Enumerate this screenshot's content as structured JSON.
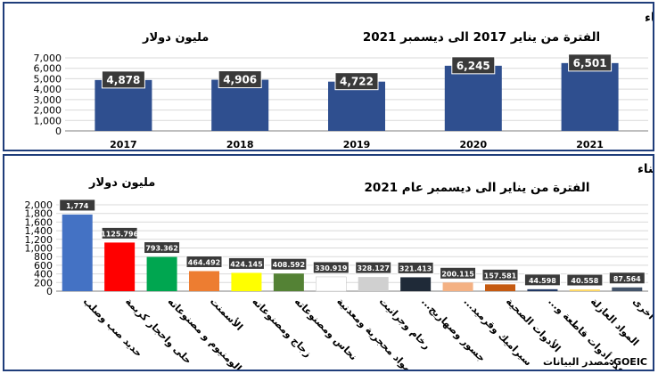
{
  "source": "مصدر البيانات:GOEIC",
  "chart_data": [
    {
      "type": "bar",
      "title": "إجمالي صادرات القطاعات تحت مظلة المجلس التصديرى لمواد البناء والحراريات والصناعات المعدنية والتشييد والبناء",
      "subtitle": "الفترة من يناير 2017 الى ديسمبر 2021",
      "ylabel": "مليون دولار",
      "categories": [
        "2017",
        "2018",
        "2019",
        "2020",
        "2021"
      ],
      "values": [
        4878,
        4906,
        4722,
        6245,
        6501
      ],
      "data_labels": [
        "4,878",
        "4,906",
        "4,722",
        "6,245",
        "6,501"
      ],
      "yticks": [
        "0",
        "1,000",
        "2,000",
        "3,000",
        "4,000",
        "5,000",
        "6,000",
        "7,000"
      ],
      "ylim": [
        0,
        7000
      ],
      "grid": true,
      "colors": {
        "bar": "#2f4f8f",
        "label_bg": "#3a3a3a",
        "label_text": "#ffffff"
      }
    },
    {
      "type": "bar",
      "title": "صادرات القطاعات تحت مظلة المجلس التصديرى لمواد البناء والحراريات والصناعات المعدنية والتشييد والبناء",
      "subtitle": "الفترة من يناير الى ديسمبر عام 2021",
      "ylabel": "مليون دولار",
      "categories": [
        "حديد صب وصلب",
        "حلى واحجار كريمة",
        "الومنيوم و مصنوعاته",
        "الأسمنت",
        "زجاج ومصنوعاته",
        "نحاس ومصنوعاته",
        "مواد محجرية ومعدنية",
        "رخام وجرانيت",
        "جسور وصهاريج...",
        "سيراميك وقرميد...",
        "الأدوات الصحية",
        "عدد أدوات قاطعة و...",
        "المواد العازلة",
        "أخرى"
      ],
      "values": [
        1774,
        1125.796,
        793.362,
        464.492,
        424.145,
        408.592,
        330.919,
        328.127,
        321.413,
        200.115,
        157.581,
        44.598,
        40.558,
        87.564
      ],
      "data_labels": [
        "1,774",
        "1125.796",
        "793.362",
        "464.492",
        "424.145",
        "408.592",
        "330.919",
        "328.127",
        "321.413",
        "200.115",
        "157.581",
        "44.598",
        "40.558",
        "87.564"
      ],
      "yticks": [
        "0",
        "200",
        "400",
        "600",
        "800",
        "1,000",
        "1,200",
        "1,400",
        "1,600",
        "1,800",
        "2,000"
      ],
      "ylim": [
        0,
        2000
      ],
      "grid": true,
      "colors": [
        "#4472c4",
        "#ff0000",
        "#00a650",
        "#ed7d31",
        "#ffff00",
        "#548235",
        "#ffffff",
        "#d0d0d0",
        "#1f2a38",
        "#f4b183",
        "#c55a11",
        "#203864",
        "#ffd966",
        "#44546a"
      ],
      "label_bg": "#3a3a3a",
      "label_text": "#ffffff"
    }
  ]
}
